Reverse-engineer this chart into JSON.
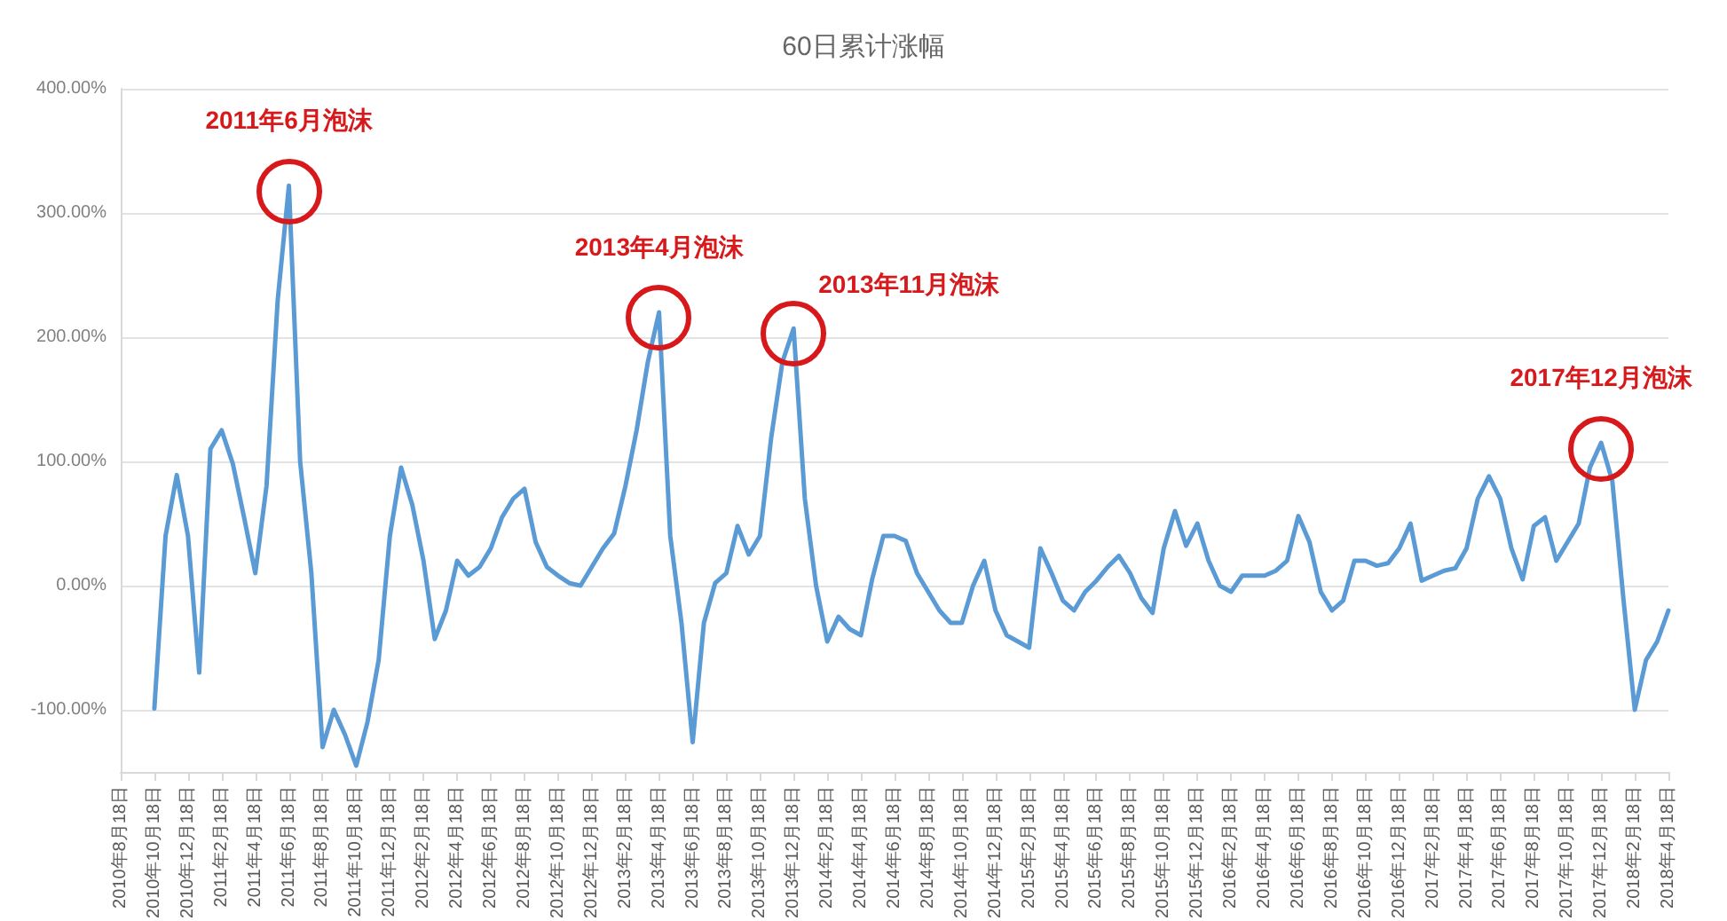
{
  "chart_data": {
    "type": "line",
    "title": "60日累计涨幅",
    "categories": [
      "2010年8月18日",
      null,
      null,
      "2010年10月18日",
      null,
      null,
      "2010年12月18日",
      null,
      null,
      "2011年2月18日",
      null,
      null,
      "2011年4月18日",
      null,
      null,
      "2011年6月18日",
      null,
      null,
      "2011年8月18日",
      null,
      null,
      "2011年10月18日",
      null,
      null,
      "2011年12月18日",
      null,
      null,
      "2012年2月18日",
      null,
      null,
      "2012年4月18日",
      null,
      null,
      "2012年6月18日",
      null,
      null,
      "2012年8月18日",
      null,
      null,
      "2012年10月18日",
      null,
      null,
      "2012年12月18日",
      null,
      null,
      "2013年2月18日",
      null,
      null,
      "2013年4月18日",
      null,
      null,
      "2013年6月18日",
      null,
      null,
      "2013年8月18日",
      null,
      null,
      "2013年10月18日",
      null,
      null,
      "2013年12月18日",
      null,
      null,
      "2014年2月18日",
      null,
      null,
      "2014年4月18日",
      null,
      null,
      "2014年6月18日",
      null,
      null,
      "2014年8月18日",
      null,
      null,
      "2014年10月18日",
      null,
      null,
      "2014年12月18日",
      null,
      null,
      "2015年2月18日",
      null,
      null,
      "2015年4月18日",
      null,
      null,
      "2015年6月18日",
      null,
      null,
      "2015年8月18日",
      null,
      null,
      "2015年10月18日",
      null,
      null,
      "2015年12月18日",
      null,
      null,
      "2016年2月18日",
      null,
      null,
      "2016年4月18日",
      null,
      null,
      "2016年6月18日",
      null,
      null,
      "2016年8月18日",
      null,
      null,
      "2016年10月18日",
      null,
      null,
      "2016年12月18日",
      null,
      null,
      "2017年2月18日",
      null,
      null,
      "2017年4月18日",
      null,
      null,
      "2017年6月18日",
      null,
      null,
      "2017年8月18日",
      null,
      null,
      "2017年10月18日",
      null,
      null,
      "2017年12月18日",
      null,
      null,
      "2018年2月18日",
      null,
      null,
      "2018年4月18日"
    ],
    "series": [
      {
        "color": "#5b9bd5",
        "values": [
          null,
          null,
          null,
          -99,
          40,
          89,
          40,
          -70,
          110,
          125,
          98,
          55,
          10,
          80,
          230,
          322,
          100,
          10,
          -130,
          -100,
          -120,
          -145,
          -110,
          -60,
          40,
          95,
          65,
          20,
          -43,
          -20,
          20,
          8,
          15,
          30,
          55,
          70,
          78,
          35,
          15,
          8,
          2,
          0,
          15,
          30,
          42,
          80,
          125,
          180,
          220,
          40,
          -30,
          -126,
          -30,
          2,
          10,
          48,
          25,
          40,
          119,
          180,
          207,
          70,
          0,
          -45,
          -25,
          -35,
          -40,
          5,
          40,
          40,
          36,
          10,
          -5,
          -20,
          -30,
          -30,
          0,
          20,
          -20,
          -40,
          -45,
          -50,
          30,
          10,
          -12,
          -20,
          -5,
          4,
          15,
          24,
          10,
          -10,
          -22,
          30,
          60,
          32,
          50,
          20,
          0,
          -5,
          8,
          8,
          8,
          12,
          20,
          56,
          35,
          -5,
          -20,
          -12,
          20,
          20,
          16,
          18,
          30,
          50,
          4,
          8,
          12,
          14,
          30,
          70,
          88,
          70,
          30,
          5,
          48,
          55,
          20,
          35,
          50,
          95,
          115,
          84,
          -12,
          -100,
          -60,
          -45,
          -20
        ]
      }
    ],
    "ylim": [
      -150,
      400
    ],
    "yticks": [
      {
        "value": -100,
        "label": "-100.00%"
      },
      {
        "value": 0,
        "label": "0.00%"
      },
      {
        "value": 100,
        "label": "100.00%"
      },
      {
        "value": 200,
        "label": "200.00%"
      },
      {
        "value": 300,
        "label": "300.00%"
      },
      {
        "value": 400,
        "label": "400.00%"
      }
    ],
    "grid": "y",
    "marker": "none",
    "line_style": "solid",
    "annotations": [
      {
        "text": "2011年6月泡沫",
        "x": "2011年6月18日",
        "y": 322
      },
      {
        "text": "2013年4月泡沫",
        "x": "2013年4月18日",
        "y": 220
      },
      {
        "text": "2013年11月泡沫",
        "x": "2013年12月18日",
        "y": 207
      },
      {
        "text": "2017年12月泡沫",
        "x": "2017年12月18日",
        "y": 115
      }
    ]
  }
}
